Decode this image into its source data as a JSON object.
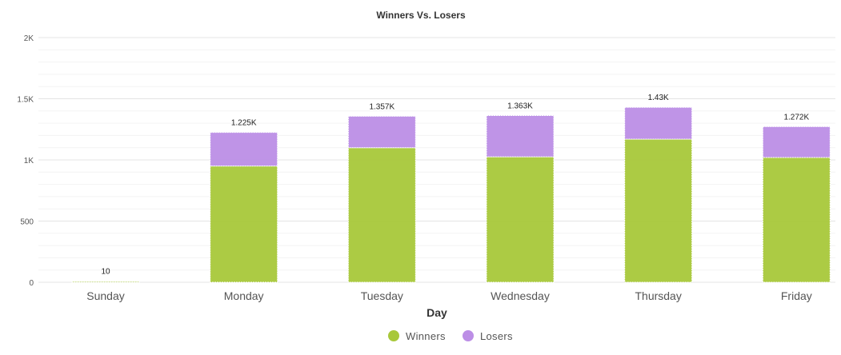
{
  "chart_data": {
    "type": "bar",
    "stacked": true,
    "title": "Winners Vs. Losers",
    "xlabel": "Day",
    "ylabel": "",
    "categories": [
      "Sunday",
      "Monday",
      "Tuesday",
      "Wednesday",
      "Thursday",
      "Friday"
    ],
    "series": [
      {
        "name": "Winners",
        "color": "#a8c83a",
        "values": [
          8,
          950,
          1100,
          1025,
          1170,
          1020
        ]
      },
      {
        "name": "Losers",
        "color": "#bc8ee6",
        "values": [
          2,
          275,
          257,
          338,
          260,
          252
        ]
      }
    ],
    "totals": [
      10,
      1225,
      1357,
      1363,
      1430,
      1272
    ],
    "total_labels": [
      "10",
      "1.225K",
      "1.357K",
      "1.363K",
      "1.43K",
      "1.272K"
    ],
    "ylim": [
      0,
      2000
    ],
    "yticks": [
      0,
      500,
      1000,
      1500,
      2000
    ],
    "ytick_labels": [
      "0",
      "500",
      "1K",
      "1.5K",
      "2K"
    ],
    "grid": true,
    "legend_position": "bottom-center"
  }
}
